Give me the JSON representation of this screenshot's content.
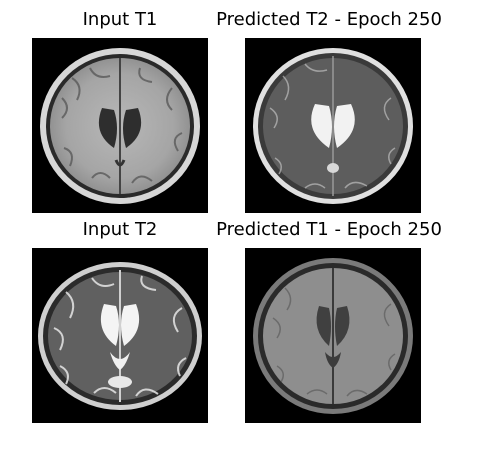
{
  "panels": [
    {
      "title": "Input T1"
    },
    {
      "title": "Predicted T2 - Epoch 250"
    },
    {
      "title": "Input T2"
    },
    {
      "title": "Predicted T1 - Epoch 250"
    }
  ]
}
